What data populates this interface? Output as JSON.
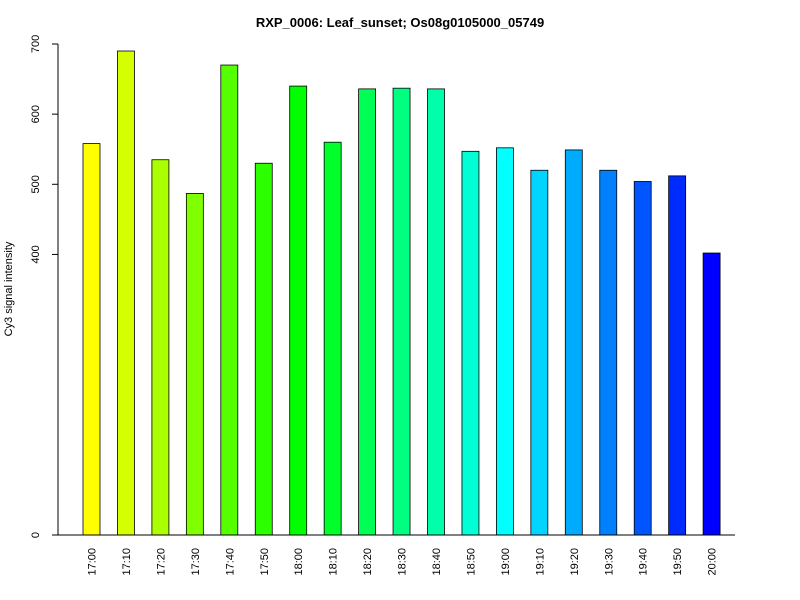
{
  "chart_data": {
    "type": "bar",
    "title": "RXP_0006: Leaf_sunset; Os08g0105000_05749",
    "xlabel": "",
    "ylabel": "Cy3 signal intensity",
    "ylim": [
      0,
      700
    ],
    "yticks": [
      0,
      400,
      500,
      600,
      700
    ],
    "grid": false,
    "categories": [
      "17:00",
      "17:10",
      "17:20",
      "17:30",
      "17:40",
      "17:50",
      "18:00",
      "18:10",
      "18:20",
      "18:30",
      "18:40",
      "18:50",
      "19:00",
      "19:10",
      "19:20",
      "19:30",
      "19:40",
      "19:50",
      "20:00"
    ],
    "values": [
      558,
      690,
      535,
      487,
      670,
      530,
      640,
      560,
      636,
      637,
      636,
      547,
      552,
      520,
      549,
      520,
      504,
      512,
      402
    ],
    "colors": [
      "#ffff00",
      "#d4ff00",
      "#aaff00",
      "#80ff00",
      "#55ff00",
      "#2bff00",
      "#00ff00",
      "#00ff2b",
      "#00ff55",
      "#00ff80",
      "#00ffaa",
      "#00ffd4",
      "#00ffff",
      "#00d4ff",
      "#00aaff",
      "#0080ff",
      "#0055ff",
      "#002bff",
      "#0000ff"
    ]
  }
}
